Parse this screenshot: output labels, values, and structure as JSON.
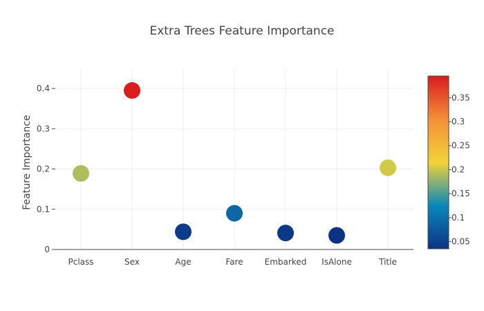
{
  "chart_data": {
    "type": "scatter",
    "title": "Extra Trees Feature Importance",
    "xlabel": "",
    "ylabel": "Feature Importance",
    "categories": [
      "Pclass",
      "Sex",
      "Age",
      "Fare",
      "Embarked",
      "IsAlone",
      "Title"
    ],
    "values": [
      0.189,
      0.395,
      0.044,
      0.09,
      0.041,
      0.035,
      0.203
    ],
    "ylim": [
      0,
      0.4
    ],
    "yticks": [
      0,
      0.1,
      0.2,
      0.3,
      0.4
    ],
    "ytick_labels": [
      "0",
      "0.1",
      "0.2",
      "0.3",
      "0.4"
    ],
    "grid": true,
    "colorscale": {
      "name": "Portland",
      "stops": [
        "#0c3383",
        "#0a88ba",
        "#f2d338",
        "#f28f38",
        "#d91e1e"
      ],
      "cmin": 0.035,
      "cmax": 0.395,
      "ticks": [
        0.05,
        0.1,
        0.15,
        0.2,
        0.25,
        0.3,
        0.35
      ],
      "tick_labels": [
        "0.05",
        "0.1",
        "0.15",
        "0.2",
        "0.25",
        "0.3",
        "0.35"
      ]
    }
  }
}
